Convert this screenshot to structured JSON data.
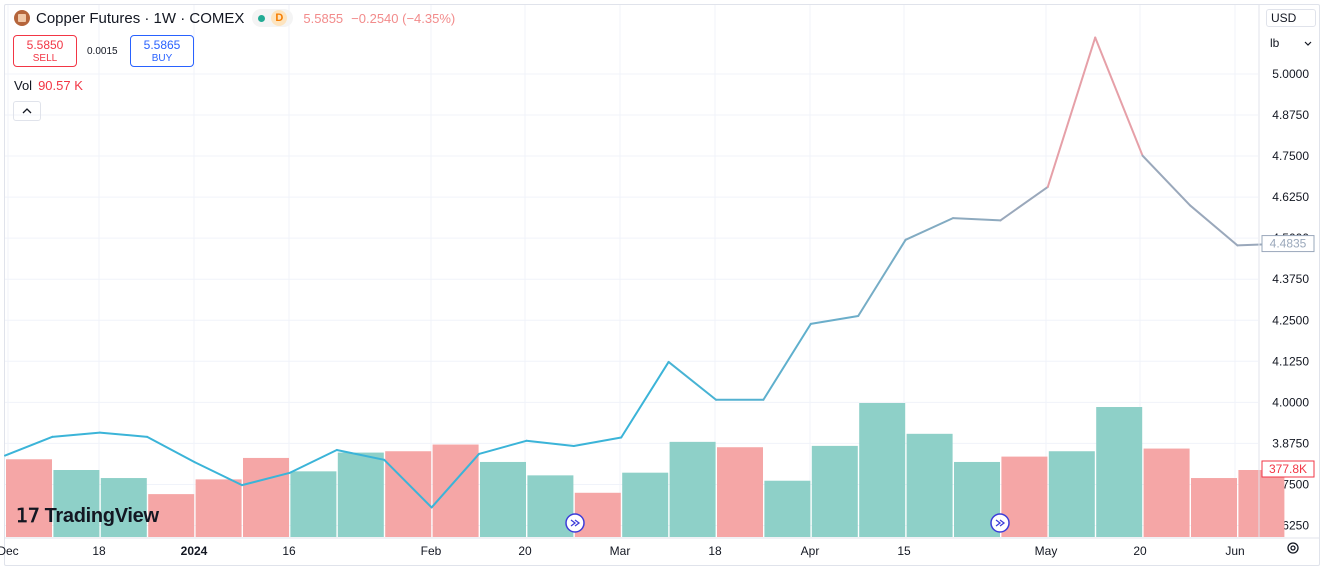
{
  "header": {
    "symbol_title": "Copper Futures · 1W · COMEX",
    "status_letter": "D",
    "last_price": "5.5855",
    "change": "−0.2540 (−4.35%)"
  },
  "trade": {
    "sell_price": "5.5850",
    "sell_label": "SELL",
    "spread": "0.0015",
    "buy_price": "5.5865",
    "buy_label": "BUY"
  },
  "volume": {
    "label": "Vol",
    "value": "90.57 K"
  },
  "controls": {
    "currency": "USD",
    "unit": "lb",
    "collapse_icon": "chevron-up-icon",
    "settings_icon": "gear-icon"
  },
  "brand": {
    "name": "TradingView"
  },
  "colors": {
    "line": "#3bb4d8",
    "line_end": "#9aa8bb",
    "peak": "#e6a0a8",
    "vol_up": "#8ed0c8",
    "vol_down": "#f5a6a6"
  },
  "chart_data": {
    "type": "line",
    "y_ticks": [
      "5.0000",
      "4.8750",
      "4.7500",
      "4.6250",
      "4.5000",
      "4.3750",
      "4.2500",
      "4.1250",
      "4.0000",
      "3.8750",
      "3.7500",
      "3.6250"
    ],
    "x_ticks": [
      "Dec",
      "18",
      "2024",
      "16",
      "Feb",
      "20",
      "Mar",
      "18",
      "Apr",
      "15",
      "May",
      "20",
      "Jun"
    ],
    "ylim": [
      3.59,
      5.21
    ],
    "price_label": "4.4835",
    "volume_label": "377.8K",
    "price": [
      3.838,
      3.895,
      3.908,
      3.895,
      3.818,
      3.748,
      3.785,
      3.855,
      3.825,
      3.68,
      3.843,
      3.883,
      3.867,
      3.893,
      4.123,
      4.008,
      4.008,
      4.239,
      4.263,
      4.495,
      4.561,
      4.554,
      4.656,
      5.111,
      4.751,
      4.6,
      4.478,
      4.4835
    ],
    "volume_series": [
      {
        "up": false,
        "value": 0.58
      },
      {
        "up": true,
        "value": 0.5
      },
      {
        "up": true,
        "value": 0.44
      },
      {
        "up": false,
        "value": 0.32
      },
      {
        "up": false,
        "value": 0.43
      },
      {
        "up": false,
        "value": 0.59
      },
      {
        "up": true,
        "value": 0.49
      },
      {
        "up": true,
        "value": 0.63
      },
      {
        "up": false,
        "value": 0.64
      },
      {
        "up": false,
        "value": 0.69
      },
      {
        "up": true,
        "value": 0.56
      },
      {
        "up": true,
        "value": 0.46
      },
      {
        "up": false,
        "value": 0.33
      },
      {
        "up": true,
        "value": 0.48
      },
      {
        "up": true,
        "value": 0.71
      },
      {
        "up": false,
        "value": 0.67
      },
      {
        "up": true,
        "value": 0.42
      },
      {
        "up": true,
        "value": 0.68
      },
      {
        "up": true,
        "value": 1.0
      },
      {
        "up": true,
        "value": 0.77
      },
      {
        "up": true,
        "value": 0.56
      },
      {
        "up": false,
        "value": 0.6
      },
      {
        "up": true,
        "value": 0.64
      },
      {
        "up": true,
        "value": 0.97
      },
      {
        "up": false,
        "value": 0.66
      },
      {
        "up": false,
        "value": 0.44
      },
      {
        "up": false,
        "value": 0.5
      }
    ]
  }
}
